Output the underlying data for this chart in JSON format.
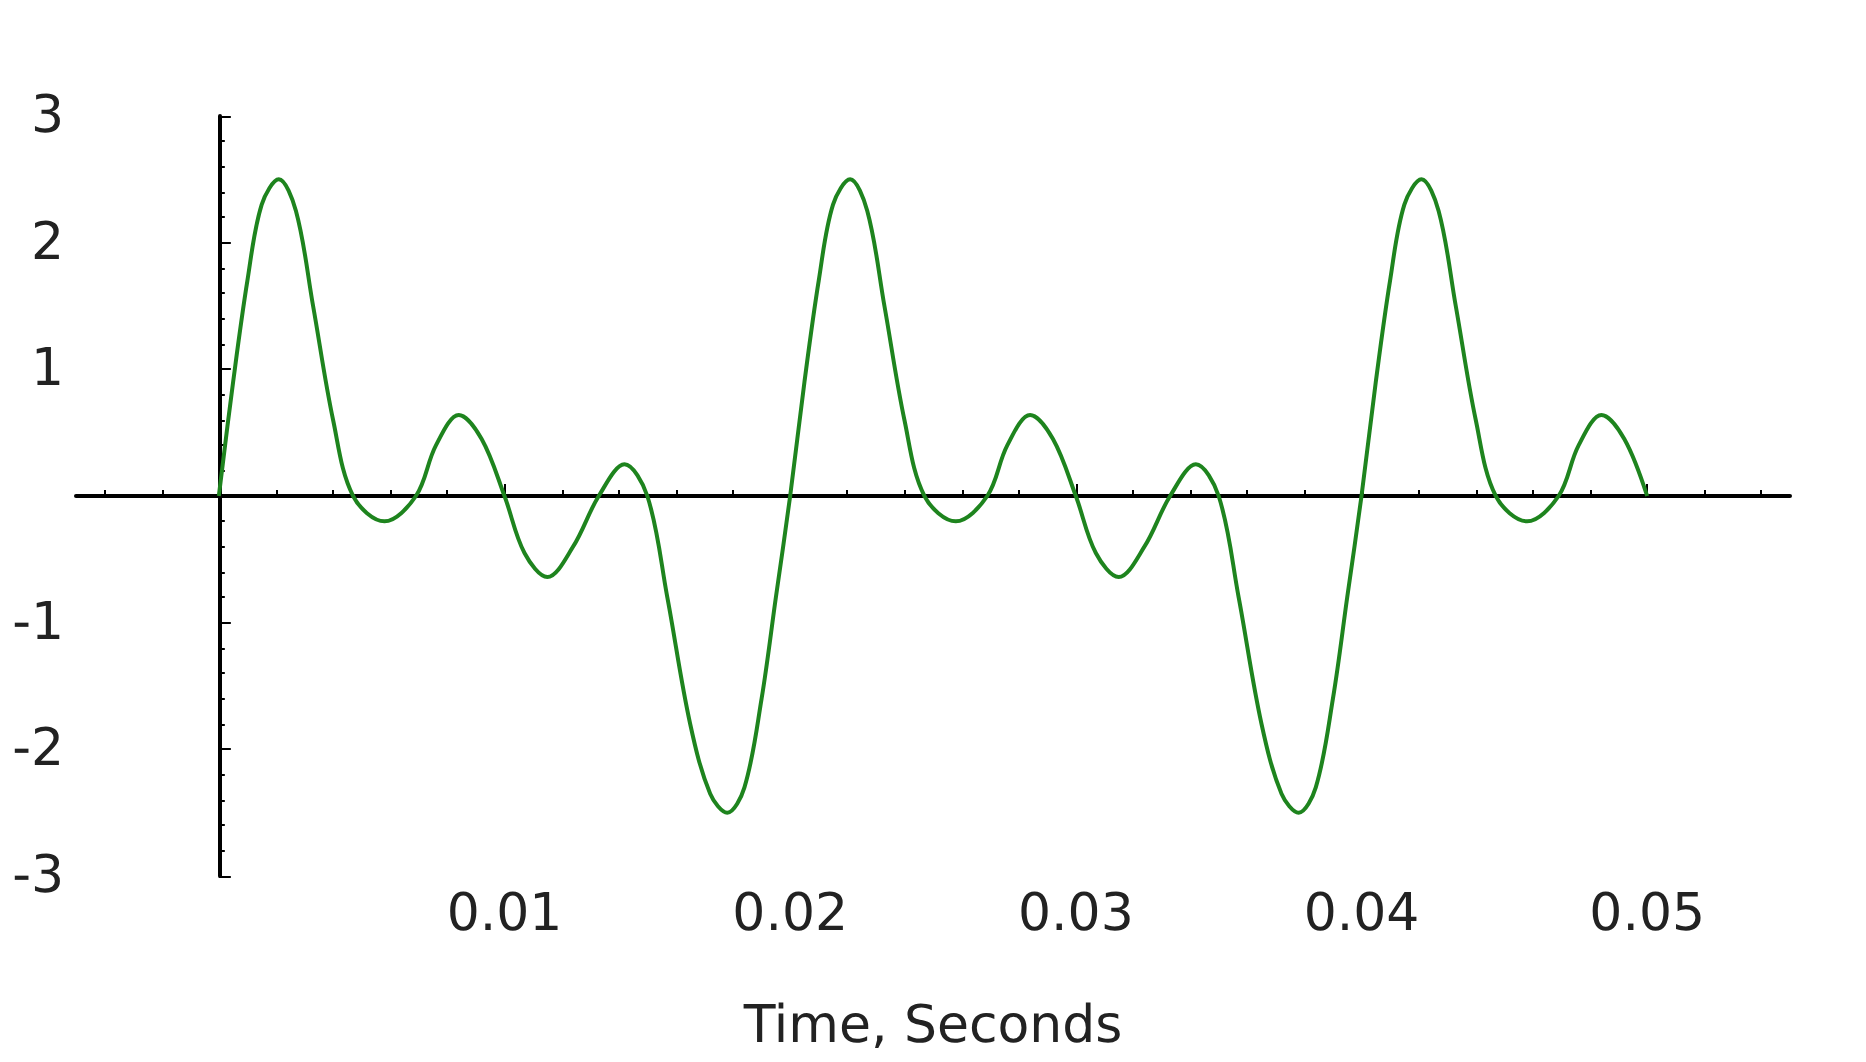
{
  "chart_data": {
    "type": "line",
    "xlabel": "Time, Seconds",
    "xlim": [
      -0.005,
      0.055
    ],
    "xticks": [
      0.01,
      0.02,
      0.03,
      0.04,
      0.05
    ],
    "ylim": [
      -3,
      3
    ],
    "yticks": [
      -3,
      -2,
      -1,
      {
        "value": 0,
        "label": null
      },
      1,
      2,
      3
    ],
    "marker": "none",
    "series": [
      {
        "color": "#1e841e",
        "x": [
          0,
          0.0005,
          0.001,
          0.0015,
          0.0021,
          0.0027,
          0.0033,
          0.004,
          0.0047,
          0.0058,
          0.0069,
          0.0076,
          0.0084,
          0.0092,
          0.01,
          0.0107,
          0.0115,
          0.0124,
          0.0133,
          0.0142,
          0.015,
          0.0157,
          0.0165,
          0.0172,
          0.0178,
          0.0184,
          0.019,
          0.0195,
          0.02,
          0.0205,
          0.021,
          0.0215,
          0.0221,
          0.0227,
          0.0233,
          0.024,
          0.0247,
          0.0258,
          0.0269,
          0.0276,
          0.0284,
          0.0292,
          0.03,
          0.0307,
          0.0315,
          0.0324,
          0.0333,
          0.0342,
          0.035,
          0.0357,
          0.0365,
          0.0372,
          0.0378,
          0.0384,
          0.039,
          0.0395,
          0.04,
          0.0405,
          0.041,
          0.0415,
          0.0421,
          0.0427,
          0.0433,
          0.044,
          0.0447,
          0.0458,
          0.0469,
          0.0476,
          0.0484,
          0.0492,
          0.05
        ],
        "values": [
          0,
          0.9,
          1.7,
          2.3,
          2.5,
          2.25,
          1.5,
          0.6,
          0,
          -0.2,
          0,
          0.4,
          0.64,
          0.45,
          0,
          -0.45,
          -0.64,
          -0.4,
          0,
          0.25,
          0,
          -0.8,
          -1.8,
          -2.35,
          -2.5,
          -2.3,
          -1.6,
          -0.8,
          0,
          0.9,
          1.7,
          2.3,
          2.5,
          2.25,
          1.5,
          0.6,
          0,
          -0.2,
          0,
          0.4,
          0.64,
          0.45,
          0,
          -0.45,
          -0.64,
          -0.4,
          0,
          0.25,
          0,
          -0.8,
          -1.8,
          -2.35,
          -2.5,
          -2.3,
          -1.6,
          -0.8,
          0,
          0.9,
          1.7,
          2.3,
          2.5,
          2.25,
          1.5,
          0.6,
          0,
          -0.2,
          0,
          0.4,
          0.64,
          0.45,
          0
        ]
      }
    ]
  }
}
